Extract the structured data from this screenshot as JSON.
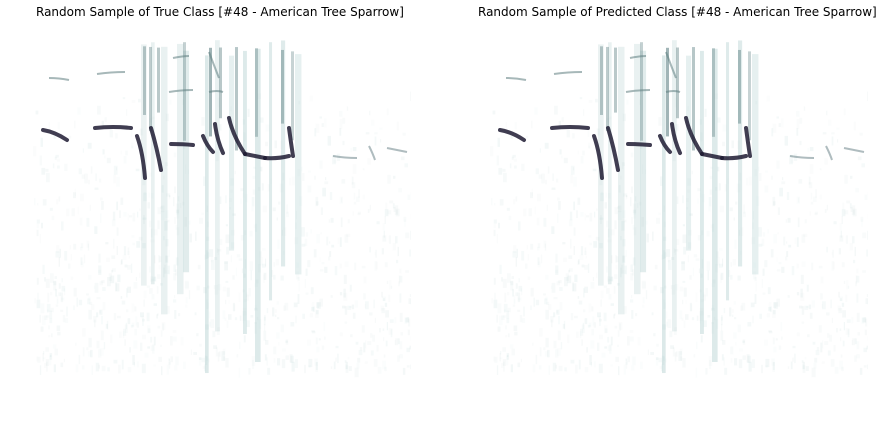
{
  "figure": {
    "panels": [
      {
        "title": "Random Sample of True Class [#48 - American Tree Sparrow]"
      },
      {
        "title": "Random Sample of Predicted Class [#48 - American Tree Sparrow]"
      }
    ],
    "colors": {
      "background": "#ffffff",
      "colormap_low": "#f7fbfb",
      "colormap_mid": "#b7d2d2",
      "colormap_high": "#1e1b33"
    }
  }
}
